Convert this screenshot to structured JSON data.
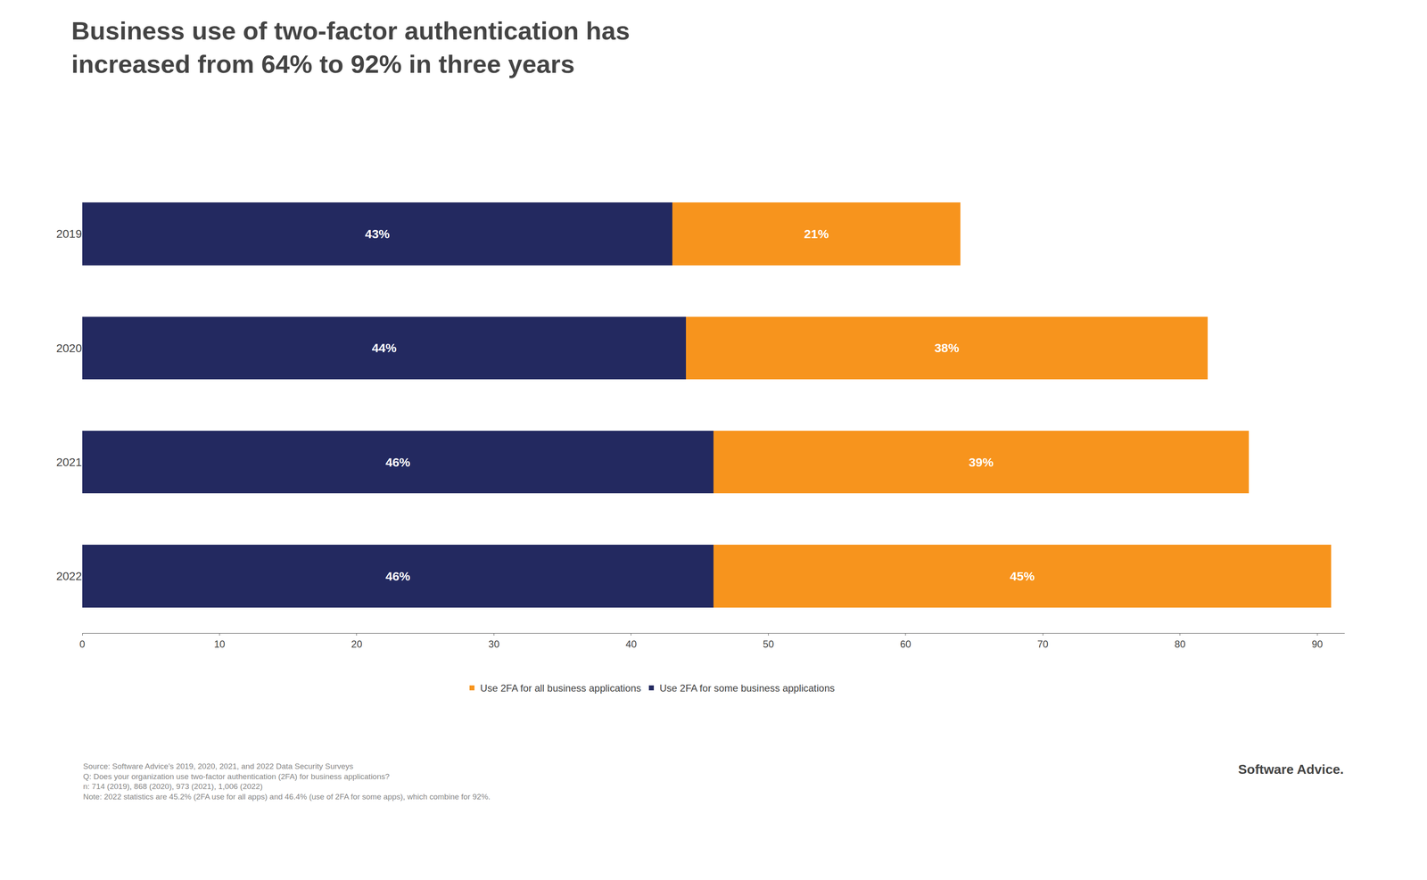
{
  "chart_data": {
    "type": "bar",
    "orientation": "horizontal",
    "stacked": true,
    "title": "Business use of two-factor authentication has\nincreased from 64% to 92% in three years",
    "categories": [
      "2019",
      "2020",
      "2021",
      "2022"
    ],
    "series": [
      {
        "name": "Use 2FA for some business applications",
        "color": "#232960",
        "values": [
          43,
          44,
          46,
          46
        ],
        "value_labels": [
          "43%",
          "44%",
          "46%",
          "46%"
        ]
      },
      {
        "name": "Use 2FA for all business applications",
        "color": "#f7941d",
        "values": [
          21,
          38,
          39,
          45
        ],
        "value_labels": [
          "21%",
          "38%",
          "39%",
          "45%"
        ]
      }
    ],
    "xlim": [
      0,
      92
    ],
    "xticks": [
      0,
      10,
      20,
      30,
      40,
      50,
      60,
      70,
      80,
      90
    ],
    "grid": false,
    "data_labels": true,
    "legend": "bottom",
    "annotations": [
      "Source: Software Advice’s 2019, 2020, 2021, and 2022 Data Security Surveys",
      "Q: Does your organization use two-factor authentication (2FA) for business applications?",
      "n: 714 (2019), 868 (2020), 973 (2021), 1,006 (2022)",
      "Note: 2022 statistics are 45.2% (2FA use for all apps) and 46.4% (use of 2FA for some apps), which combine for 92%.",
      "Software Advice."
    ]
  }
}
